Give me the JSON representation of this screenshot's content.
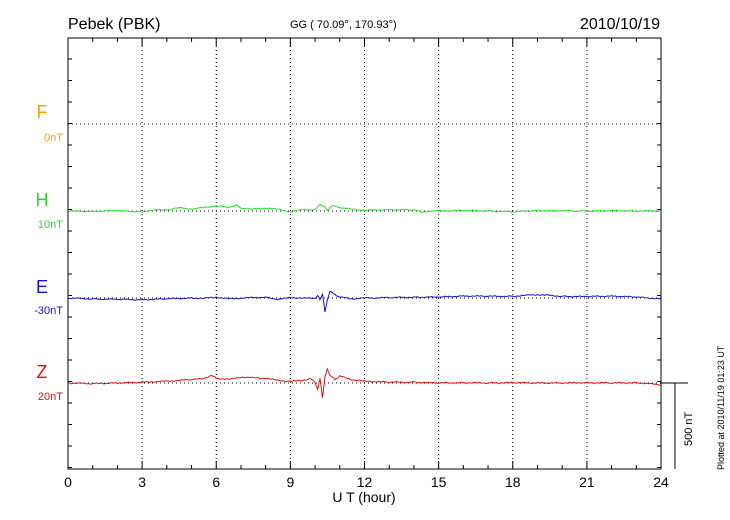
{
  "header": {
    "station": "Pebek (PBK)",
    "coords": "GG ( 70.09°, 170.93°)",
    "date": "2010/10/19"
  },
  "footer": {
    "plotted": "Plotted at 2010/11/19 01:23 UT",
    "scale_bar": "500 nT"
  },
  "chart_data": {
    "type": "line",
    "xlabel": "U T (hour)",
    "xlim": [
      0,
      24
    ],
    "xticks": [
      "0",
      "3",
      "6",
      "9",
      "12",
      "15",
      "18",
      "21",
      "24"
    ],
    "scale_bar_nT": 500,
    "grid": true,
    "series": [
      {
        "name": "F",
        "offset": "0nT",
        "color": "#f5a000",
        "points": []
      },
      {
        "name": "H",
        "offset": "10nT",
        "color": "#22dd22",
        "points": [
          [
            0,
            0
          ],
          [
            1,
            -2
          ],
          [
            2,
            2
          ],
          [
            3,
            -5
          ],
          [
            3.5,
            5
          ],
          [
            4,
            8
          ],
          [
            4.5,
            18
          ],
          [
            5,
            12
          ],
          [
            5.5,
            20
          ],
          [
            6,
            30
          ],
          [
            6.5,
            20
          ],
          [
            6.8,
            35
          ],
          [
            7,
            18
          ],
          [
            7.5,
            10
          ],
          [
            8,
            18
          ],
          [
            8.5,
            10
          ],
          [
            9,
            -5
          ],
          [
            9.5,
            8
          ],
          [
            10,
            8
          ],
          [
            10.2,
            40
          ],
          [
            10.4,
            22
          ],
          [
            10.5,
            5
          ],
          [
            10.7,
            30
          ],
          [
            11,
            20
          ],
          [
            11.5,
            10
          ],
          [
            12,
            4
          ],
          [
            13,
            8
          ],
          [
            14,
            5
          ],
          [
            14.3,
            -5
          ],
          [
            15,
            0
          ],
          [
            16,
            3
          ],
          [
            17,
            0
          ],
          [
            18,
            -5
          ],
          [
            19,
            3
          ],
          [
            20,
            0
          ],
          [
            21,
            0
          ],
          [
            22,
            2
          ],
          [
            23,
            0
          ],
          [
            24,
            0
          ]
        ]
      },
      {
        "name": "E",
        "offset": "-30nT",
        "color": "#1212cc",
        "points": [
          [
            0,
            0
          ],
          [
            1,
            -5
          ],
          [
            2,
            -8
          ],
          [
            3,
            -10
          ],
          [
            4,
            -5
          ],
          [
            5,
            0
          ],
          [
            5.5,
            -2
          ],
          [
            6,
            5
          ],
          [
            6.5,
            -5
          ],
          [
            7,
            0
          ],
          [
            8,
            5
          ],
          [
            8.5,
            -8
          ],
          [
            9,
            2
          ],
          [
            9.5,
            0
          ],
          [
            10,
            -3
          ],
          [
            10.1,
            15
          ],
          [
            10.2,
            -10
          ],
          [
            10.3,
            25
          ],
          [
            10.4,
            -80
          ],
          [
            10.5,
            -10
          ],
          [
            10.6,
            40
          ],
          [
            10.8,
            20
          ],
          [
            11,
            5
          ],
          [
            11.5,
            -5
          ],
          [
            12,
            0
          ],
          [
            13,
            2
          ],
          [
            14,
            5
          ],
          [
            15,
            5
          ],
          [
            16,
            12
          ],
          [
            17,
            10
          ],
          [
            18,
            10
          ],
          [
            18.5,
            15
          ],
          [
            19,
            20
          ],
          [
            20,
            10
          ],
          [
            21,
            8
          ],
          [
            22,
            12
          ],
          [
            23,
            5
          ],
          [
            24,
            -5
          ]
        ]
      },
      {
        "name": "Z",
        "offset": "20nT",
        "color": "#dd1111",
        "points": [
          [
            0,
            0
          ],
          [
            1,
            -4
          ],
          [
            2,
            0
          ],
          [
            3,
            5
          ],
          [
            3.5,
            8
          ],
          [
            4,
            10
          ],
          [
            5,
            20
          ],
          [
            5.5,
            25
          ],
          [
            5.8,
            45
          ],
          [
            6,
            28
          ],
          [
            6.5,
            20
          ],
          [
            7,
            35
          ],
          [
            7.5,
            30
          ],
          [
            8,
            28
          ],
          [
            8.5,
            15
          ],
          [
            9,
            10
          ],
          [
            9.5,
            15
          ],
          [
            9.8,
            25
          ],
          [
            10,
            5
          ],
          [
            10.1,
            -40
          ],
          [
            10.2,
            30
          ],
          [
            10.3,
            -90
          ],
          [
            10.4,
            40
          ],
          [
            10.5,
            80
          ],
          [
            10.6,
            45
          ],
          [
            10.8,
            20
          ],
          [
            11,
            40
          ],
          [
            11.5,
            20
          ],
          [
            12,
            10
          ],
          [
            13,
            5
          ],
          [
            14,
            5
          ],
          [
            15,
            0
          ],
          [
            16,
            2
          ],
          [
            17,
            0
          ],
          [
            18,
            2
          ],
          [
            19,
            0
          ],
          [
            20,
            0
          ],
          [
            21,
            2
          ],
          [
            22,
            0
          ],
          [
            23,
            2
          ],
          [
            24,
            -10
          ]
        ]
      }
    ]
  }
}
